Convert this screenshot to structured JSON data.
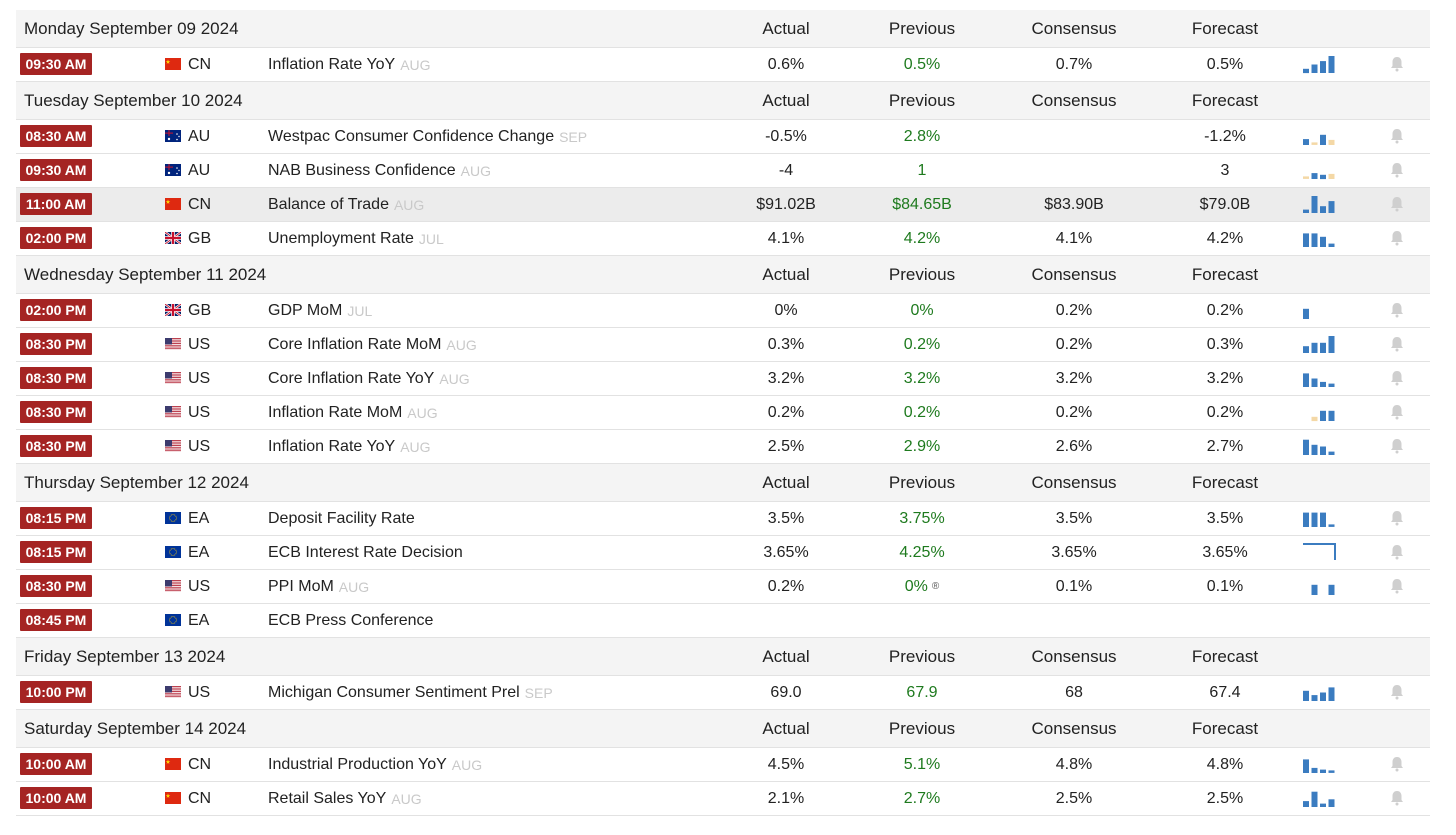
{
  "column_headers": {
    "actual": "Actual",
    "previous": "Previous",
    "consensus": "Consensus",
    "forecast": "Forecast"
  },
  "colors": {
    "time_badge": "#a52423",
    "previous_value": "#1e7a1e",
    "spark_blue": "#3b7cc0",
    "spark_tan": "#f4d8a6",
    "bell": "#cfcfcf"
  },
  "days": [
    {
      "title": "Monday September 09 2024",
      "events": [
        {
          "time": "09:30 AM",
          "flag": "cn-flag-icon",
          "country": "CN",
          "name": "Inflation Rate YoY",
          "period": "AUG",
          "actual": "0.6%",
          "previous": "0.5%",
          "consensus": "0.7%",
          "forecast": "0.5%",
          "spark": [
            {
              "v": 0.25,
              "c": "b"
            },
            {
              "v": 0.5,
              "c": "b"
            },
            {
              "v": 0.7,
              "c": "b"
            },
            {
              "v": 1,
              "c": "b"
            }
          ]
        }
      ]
    },
    {
      "title": "Tuesday September 10 2024",
      "events": [
        {
          "time": "08:30 AM",
          "flag": "au-flag-icon",
          "country": "AU",
          "name": "Westpac Consumer Confidence Change",
          "period": "SEP",
          "actual": "-0.5%",
          "previous": "2.8%",
          "consensus": "",
          "forecast": "-1.2%",
          "spark": [
            {
              "v": 0.35,
              "c": "b"
            },
            {
              "v": 0.15,
              "c": "t"
            },
            {
              "v": 0.6,
              "c": "b"
            },
            {
              "v": 0.3,
              "c": "t"
            }
          ]
        },
        {
          "time": "09:30 AM",
          "flag": "au-flag-icon",
          "country": "AU",
          "name": "NAB Business Confidence",
          "period": "AUG",
          "actual": "-4",
          "previous": "1",
          "consensus": "",
          "forecast": "3",
          "spark": [
            {
              "v": 0.15,
              "c": "t"
            },
            {
              "v": 0.35,
              "c": "b"
            },
            {
              "v": 0.25,
              "c": "b"
            },
            {
              "v": 0.3,
              "c": "t"
            }
          ]
        },
        {
          "time": "11:00 AM",
          "flag": "cn-flag-icon",
          "country": "CN",
          "name": "Balance of Trade",
          "period": "AUG",
          "actual": "$91.02B",
          "previous": "$84.65B",
          "consensus": "$83.90B",
          "forecast": "$79.0B",
          "highlight": true,
          "spark": [
            {
              "v": 0.2,
              "c": "b"
            },
            {
              "v": 1,
              "c": "b"
            },
            {
              "v": 0.4,
              "c": "b"
            },
            {
              "v": 0.7,
              "c": "b"
            }
          ]
        },
        {
          "time": "02:00 PM",
          "flag": "gb-flag-icon",
          "country": "GB",
          "name": "Unemployment Rate",
          "period": "JUL",
          "actual": "4.1%",
          "previous": "4.2%",
          "consensus": "4.1%",
          "forecast": "4.2%",
          "spark": [
            {
              "v": 0.8,
              "c": "b"
            },
            {
              "v": 0.8,
              "c": "b"
            },
            {
              "v": 0.6,
              "c": "b"
            },
            {
              "v": 0.2,
              "c": "b"
            }
          ]
        }
      ]
    },
    {
      "title": "Wednesday September 11 2024",
      "events": [
        {
          "time": "02:00 PM",
          "flag": "gb-flag-icon",
          "country": "GB",
          "name": "GDP MoM",
          "period": "JUL",
          "actual": "0%",
          "previous": "0%",
          "consensus": "0.2%",
          "forecast": "0.2%",
          "spark": [
            {
              "v": 0.6,
              "c": "b"
            },
            {
              "v": 0,
              "c": "b"
            },
            {
              "v": 0,
              "c": "b"
            },
            {
              "v": 0,
              "c": "b"
            }
          ]
        },
        {
          "time": "08:30 PM",
          "flag": "us-flag-icon",
          "country": "US",
          "name": "Core Inflation Rate MoM",
          "period": "AUG",
          "actual": "0.3%",
          "previous": "0.2%",
          "consensus": "0.2%",
          "forecast": "0.3%",
          "spark": [
            {
              "v": 0.4,
              "c": "b"
            },
            {
              "v": 0.6,
              "c": "b"
            },
            {
              "v": 0.6,
              "c": "b"
            },
            {
              "v": 1,
              "c": "b"
            }
          ]
        },
        {
          "time": "08:30 PM",
          "flag": "us-flag-icon",
          "country": "US",
          "name": "Core Inflation Rate YoY",
          "period": "AUG",
          "actual": "3.2%",
          "previous": "3.2%",
          "consensus": "3.2%",
          "forecast": "3.2%",
          "spark": [
            {
              "v": 0.8,
              "c": "b"
            },
            {
              "v": 0.5,
              "c": "b"
            },
            {
              "v": 0.3,
              "c": "b"
            },
            {
              "v": 0.2,
              "c": "b"
            }
          ]
        },
        {
          "time": "08:30 PM",
          "flag": "us-flag-icon",
          "country": "US",
          "name": "Inflation Rate MoM",
          "period": "AUG",
          "actual": "0.2%",
          "previous": "0.2%",
          "consensus": "0.2%",
          "forecast": "0.2%",
          "spark": [
            {
              "v": 0,
              "c": "b"
            },
            {
              "v": 0.25,
              "c": "t"
            },
            {
              "v": 0.6,
              "c": "b"
            },
            {
              "v": 0.6,
              "c": "b"
            }
          ]
        },
        {
          "time": "08:30 PM",
          "flag": "us-flag-icon",
          "country": "US",
          "name": "Inflation Rate YoY",
          "period": "AUG",
          "actual": "2.5%",
          "previous": "2.9%",
          "consensus": "2.6%",
          "forecast": "2.7%",
          "spark": [
            {
              "v": 0.9,
              "c": "b"
            },
            {
              "v": 0.6,
              "c": "b"
            },
            {
              "v": 0.5,
              "c": "b"
            },
            {
              "v": 0.2,
              "c": "b"
            }
          ]
        }
      ]
    },
    {
      "title": "Thursday September 12 2024",
      "events": [
        {
          "time": "08:15 PM",
          "flag": "eu-flag-icon",
          "country": "EA",
          "name": "Deposit Facility Rate",
          "period": "",
          "actual": "3.5%",
          "previous": "3.75%",
          "consensus": "3.5%",
          "forecast": "3.5%",
          "spark": [
            {
              "v": 0.85,
              "c": "b"
            },
            {
              "v": 0.85,
              "c": "b"
            },
            {
              "v": 0.85,
              "c": "b"
            },
            {
              "v": 0.15,
              "c": "b"
            }
          ]
        },
        {
          "time": "08:15 PM",
          "flag": "eu-flag-icon",
          "country": "EA",
          "name": "ECB Interest Rate Decision",
          "period": "",
          "actual": "3.65%",
          "previous": "4.25%",
          "consensus": "3.65%",
          "forecast": "3.65%",
          "spark": "step"
        },
        {
          "time": "08:30 PM",
          "flag": "us-flag-icon",
          "country": "US",
          "name": "PPI MoM",
          "period": "AUG",
          "actual": "0.2%",
          "previous": "0%",
          "previous_revised": true,
          "consensus": "0.1%",
          "forecast": "0.1%",
          "spark": [
            {
              "v": 0,
              "c": "b"
            },
            {
              "v": 0.6,
              "c": "b"
            },
            {
              "v": 0,
              "c": "b"
            },
            {
              "v": 0.6,
              "c": "b"
            }
          ]
        },
        {
          "time": "08:45 PM",
          "flag": "eu-flag-icon",
          "country": "EA",
          "name": "ECB Press Conference",
          "period": "",
          "actual": "",
          "previous": "",
          "consensus": "",
          "forecast": "",
          "spark": null,
          "no_bell": true
        }
      ]
    },
    {
      "title": "Friday September 13 2024",
      "events": [
        {
          "time": "10:00 PM",
          "flag": "us-flag-icon",
          "country": "US",
          "name": "Michigan Consumer Sentiment Prel",
          "period": "SEP",
          "actual": "69.0",
          "previous": "67.9",
          "consensus": "68",
          "forecast": "67.4",
          "spark": [
            {
              "v": 0.6,
              "c": "b"
            },
            {
              "v": 0.35,
              "c": "b"
            },
            {
              "v": 0.5,
              "c": "b"
            },
            {
              "v": 0.8,
              "c": "b"
            }
          ]
        }
      ]
    },
    {
      "title": "Saturday September 14 2024",
      "events": [
        {
          "time": "10:00 AM",
          "flag": "cn-flag-icon",
          "country": "CN",
          "name": "Industrial Production YoY",
          "period": "AUG",
          "actual": "4.5%",
          "previous": "5.1%",
          "consensus": "4.8%",
          "forecast": "4.8%",
          "spark": [
            {
              "v": 0.8,
              "c": "b"
            },
            {
              "v": 0.3,
              "c": "b"
            },
            {
              "v": 0.2,
              "c": "b"
            },
            {
              "v": 0.15,
              "c": "b"
            }
          ]
        },
        {
          "time": "10:00 AM",
          "flag": "cn-flag-icon",
          "country": "CN",
          "name": "Retail Sales YoY",
          "period": "AUG",
          "actual": "2.1%",
          "previous": "2.7%",
          "consensus": "2.5%",
          "forecast": "2.5%",
          "spark": [
            {
              "v": 0.35,
              "c": "b"
            },
            {
              "v": 0.9,
              "c": "b"
            },
            {
              "v": 0.2,
              "c": "b"
            },
            {
              "v": 0.45,
              "c": "b"
            }
          ]
        }
      ]
    }
  ]
}
